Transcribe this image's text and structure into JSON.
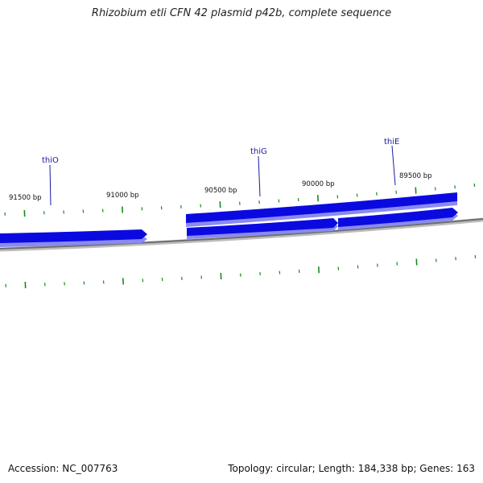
{
  "title": "Rhizobium etli CFN 42 plasmid p42b, complete sequence",
  "footer": {
    "accession_label": "Accession:",
    "accession": "NC_007763",
    "topology_label": "Topology:",
    "topology": "circular",
    "length_label": "Length:",
    "length": "184,338 bp",
    "genes_label": "Genes:",
    "genes": "163"
  },
  "scale_labels": [
    "91500 bp",
    "91000 bp",
    "90500 bp",
    "90000 bp",
    "89500 bp"
  ],
  "genes": [
    {
      "name": "thiO"
    },
    {
      "name": "thiG"
    },
    {
      "name": "thiE"
    }
  ],
  "colors": {
    "gene": "#0a0ae0",
    "gene_shadow": "#8a8af0",
    "backbone": "#777777",
    "ticks": "#1a8a1a",
    "gene_label": "#1a1aa0"
  }
}
